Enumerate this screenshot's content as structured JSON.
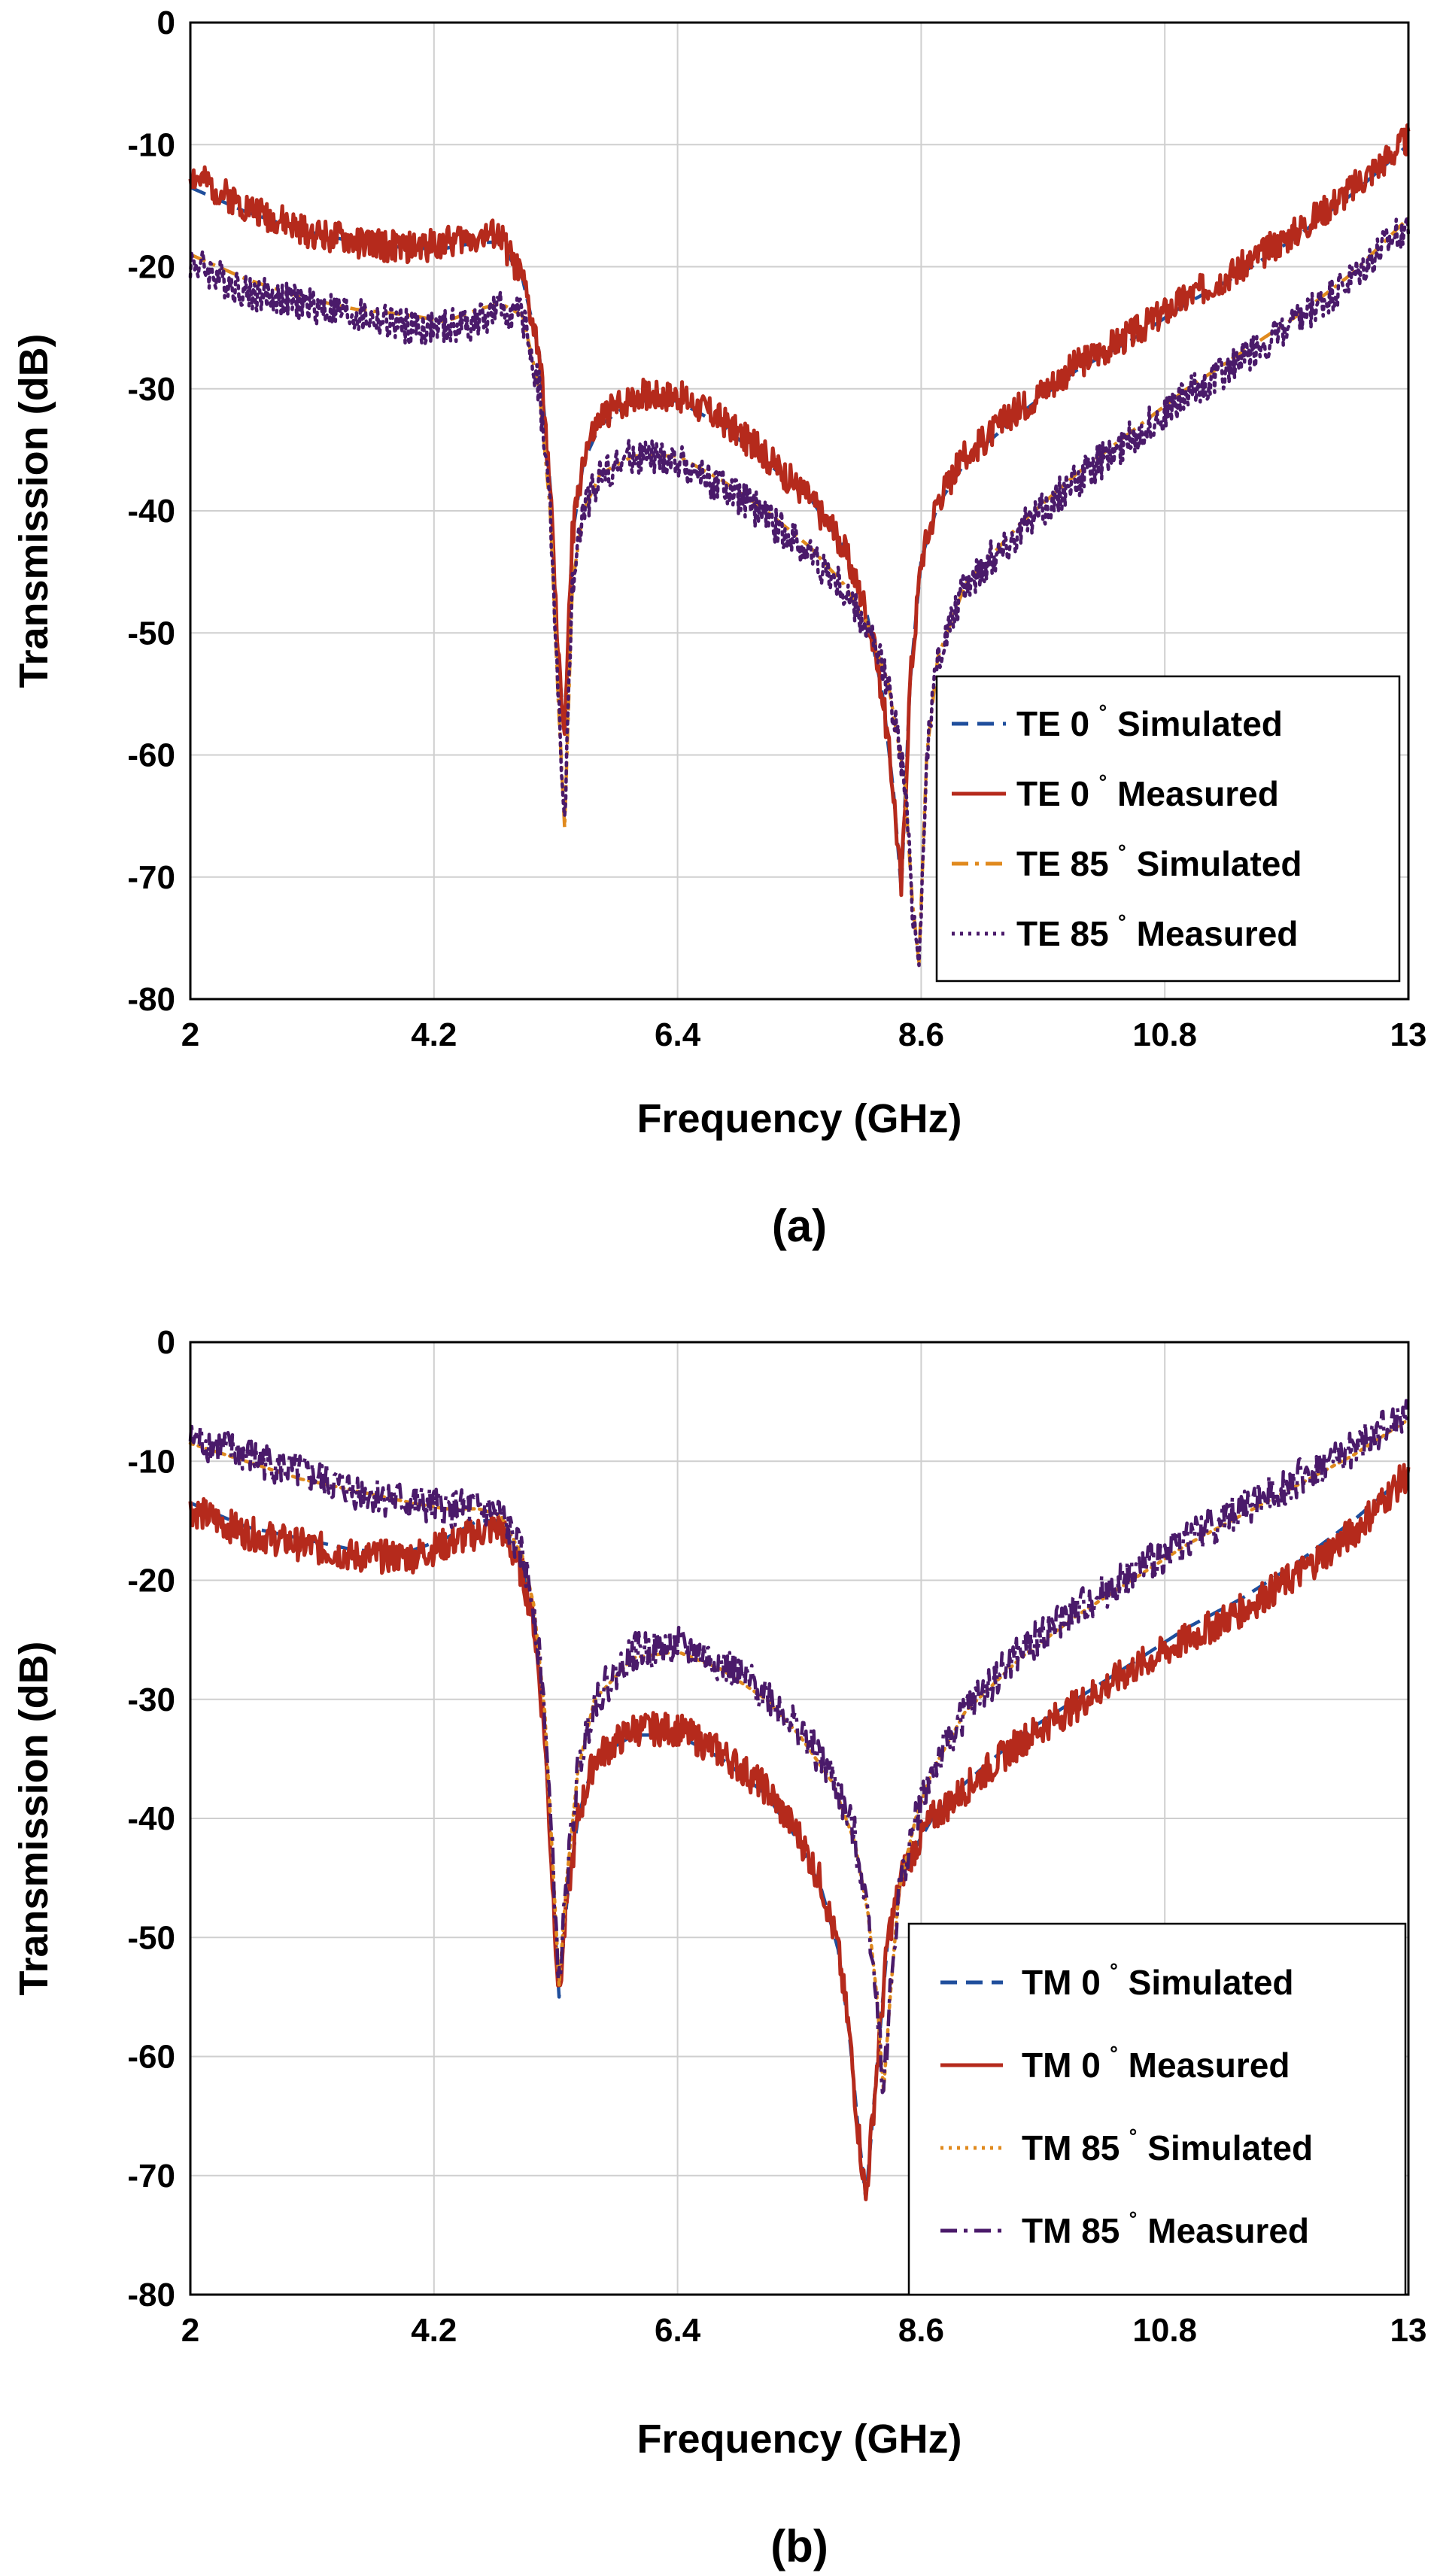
{
  "chart_data": [
    {
      "type": "line",
      "panel_label": "(a)",
      "xlabel": "Frequency (GHz)",
      "ylabel": "Transmission (dB)",
      "xlim": [
        2,
        13
      ],
      "ylim": [
        -80,
        0
      ],
      "xticks": [
        2,
        4.2,
        6.4,
        8.6,
        10.8,
        13
      ],
      "xtick_labels": [
        "2",
        "4.2",
        "6.4",
        "8.6",
        "10.8",
        "13"
      ],
      "yticks": [
        0,
        -10,
        -20,
        -30,
        -40,
        -50,
        -60,
        -70,
        -80
      ],
      "ytick_labels": [
        "0",
        "-10",
        "-20",
        "-30",
        "-40",
        "-50",
        "-60",
        "-70",
        "-80"
      ],
      "grid": true,
      "legend_position": "bottom-right",
      "series": [
        {
          "name": "TE 0˚ Simulated",
          "label_main": "TE 0",
          "label_tail": "Simulated",
          "color": "#1f4e9c",
          "style": "dashed",
          "noise": 0,
          "seed": 1,
          "x": [
            2,
            2.5,
            3,
            3.5,
            4,
            4.3,
            4.6,
            4.8,
            5.0,
            5.15,
            5.25,
            5.32,
            5.38,
            5.45,
            5.55,
            5.7,
            6.0,
            6.4,
            6.8,
            7.2,
            7.6,
            7.9,
            8.1,
            8.25,
            8.35,
            8.42,
            8.5,
            8.6,
            8.75,
            9.0,
            9.5,
            10.0,
            10.5,
            11.0,
            11.5,
            12.0,
            12.5,
            13.0
          ],
          "values": [
            -13.5,
            -15.5,
            -17,
            -18,
            -18.5,
            -18.5,
            -18,
            -18,
            -21,
            -27,
            -38,
            -52,
            -58,
            -42,
            -36,
            -33,
            -31,
            -31,
            -33,
            -36,
            -39,
            -43,
            -48,
            -55,
            -63,
            -71,
            -54,
            -44,
            -39.5,
            -36,
            -32,
            -28.5,
            -26,
            -23,
            -20.5,
            -17.5,
            -14,
            -10
          ]
        },
        {
          "name": "TE 0˚ Measured",
          "label_main": "TE 0",
          "label_tail": "Measured",
          "color": "#b52a1c",
          "style": "solid",
          "noise": 1.3,
          "seed": 2,
          "x": [
            2,
            2.5,
            3,
            3.5,
            4,
            4.3,
            4.6,
            4.8,
            5.0,
            5.15,
            5.25,
            5.32,
            5.38,
            5.45,
            5.55,
            5.7,
            6.0,
            6.4,
            6.8,
            7.2,
            7.6,
            7.9,
            8.1,
            8.25,
            8.35,
            8.42,
            8.5,
            8.6,
            8.75,
            9.0,
            9.5,
            10.0,
            10.5,
            11.0,
            11.5,
            12.0,
            12.5,
            13.0
          ],
          "values": [
            -12.5,
            -15,
            -17,
            -18,
            -18.5,
            -18,
            -17.5,
            -17.5,
            -21,
            -27,
            -38,
            -52,
            -58,
            -42,
            -35.5,
            -32.5,
            -30.5,
            -30.5,
            -32.5,
            -35.5,
            -39,
            -43,
            -48,
            -55,
            -63,
            -71,
            -54,
            -44,
            -39,
            -35.5,
            -31.5,
            -28,
            -25.5,
            -22.5,
            -20,
            -17,
            -13.5,
            -9.5
          ]
        },
        {
          "name": "TE 85˚ Simulated",
          "label_main": "TE 85",
          "label_tail": "Simulated",
          "color": "#e08a1e",
          "style": "dashdot",
          "noise": 0,
          "seed": 3,
          "x": [
            2,
            2.5,
            3,
            3.5,
            4,
            4.3,
            4.6,
            4.8,
            5.0,
            5.15,
            5.25,
            5.32,
            5.38,
            5.45,
            5.55,
            5.7,
            6.0,
            6.4,
            6.8,
            7.2,
            7.6,
            7.9,
            8.1,
            8.3,
            8.45,
            8.52,
            8.58,
            8.65,
            8.75,
            9.0,
            9.5,
            10.0,
            10.5,
            11.0,
            11.5,
            12.0,
            12.5,
            13.0
          ],
          "values": [
            -19,
            -21,
            -22.5,
            -23.5,
            -24,
            -24.5,
            -23.5,
            -23,
            -24,
            -30,
            -40,
            -55,
            -66,
            -46,
            -40,
            -37,
            -35.5,
            -35.5,
            -37.5,
            -40,
            -43,
            -46,
            -49,
            -54,
            -62,
            -72,
            -77,
            -60,
            -52,
            -46,
            -41,
            -37,
            -33.5,
            -30,
            -27,
            -24,
            -20.5,
            -16
          ]
        },
        {
          "name": "TE 85˚ Measured",
          "label_main": "TE 85",
          "label_tail": "Measured",
          "color": "#4a1a6a",
          "style": "dotted",
          "noise": 1.5,
          "seed": 4,
          "x": [
            2,
            2.5,
            3,
            3.5,
            4,
            4.3,
            4.6,
            4.8,
            5.0,
            5.15,
            5.25,
            5.32,
            5.38,
            5.45,
            5.55,
            5.7,
            6.0,
            6.4,
            6.8,
            7.2,
            7.6,
            7.9,
            8.1,
            8.3,
            8.45,
            8.52,
            8.58,
            8.65,
            8.75,
            9.0,
            9.5,
            10.0,
            10.5,
            11.0,
            11.5,
            12.0,
            12.5,
            13.0
          ],
          "values": [
            -19.5,
            -22,
            -23,
            -24,
            -25,
            -25,
            -24.5,
            -23.5,
            -24,
            -30,
            -40,
            -55,
            -66,
            -46,
            -40,
            -37,
            -35.5,
            -36,
            -38,
            -40.5,
            -43.5,
            -46.5,
            -49.5,
            -54,
            -62,
            -72,
            -77,
            -60,
            -52,
            -46,
            -41.5,
            -37.5,
            -34,
            -30.5,
            -27.5,
            -24.5,
            -21,
            -16.5
          ]
        }
      ]
    },
    {
      "type": "line",
      "panel_label": "(b)",
      "xlabel": "Frequency (GHz)",
      "ylabel": "Transmission (dB)",
      "xlim": [
        2,
        13
      ],
      "ylim": [
        -80,
        0
      ],
      "xticks": [
        2,
        4.2,
        6.4,
        8.6,
        10.8,
        13
      ],
      "xtick_labels": [
        "2",
        "4.2",
        "6.4",
        "8.6",
        "10.8",
        "13"
      ],
      "yticks": [
        0,
        -10,
        -20,
        -30,
        -40,
        -50,
        -60,
        -70,
        -80
      ],
      "ytick_labels": [
        "0",
        "-10",
        "-20",
        "-30",
        "-40",
        "-50",
        "-60",
        "-70",
        "-80"
      ],
      "grid": true,
      "legend_position": "bottom-right",
      "series": [
        {
          "name": "TM 0˚ Simulated",
          "label_main": "TM 0",
          "label_tail": "Simulated",
          "color": "#1f4e9c",
          "style": "dashed",
          "noise": 0,
          "seed": 5,
          "x": [
            2,
            2.5,
            3,
            3.5,
            4,
            4.3,
            4.6,
            4.8,
            5.0,
            5.1,
            5.2,
            5.28,
            5.33,
            5.4,
            5.5,
            5.65,
            6.0,
            6.4,
            6.8,
            7.2,
            7.5,
            7.7,
            7.85,
            7.95,
            8.03,
            8.1,
            8.2,
            8.3,
            8.45,
            8.7,
            9.0,
            9.5,
            10.0,
            10.5,
            11.0,
            11.5,
            12.0,
            12.5,
            13.0
          ],
          "values": [
            -13.5,
            -15.5,
            -16.5,
            -17.5,
            -17.5,
            -16.5,
            -15,
            -15,
            -19,
            -23,
            -33,
            -47,
            -55,
            -47,
            -40,
            -35,
            -33,
            -33,
            -35,
            -38,
            -42,
            -46,
            -51,
            -58,
            -66,
            -72,
            -61,
            -50,
            -44,
            -40,
            -37,
            -33,
            -30,
            -27,
            -24,
            -21.5,
            -18.5,
            -15,
            -11
          ]
        },
        {
          "name": "TM 0˚ Measured",
          "label_main": "TM 0",
          "label_tail": "Measured",
          "color": "#b52a1c",
          "style": "solid",
          "noise": 1.4,
          "seed": 6,
          "x": [
            2,
            2.5,
            3,
            3.5,
            4,
            4.3,
            4.6,
            4.8,
            5.0,
            5.1,
            5.2,
            5.28,
            5.33,
            5.4,
            5.5,
            5.65,
            6.0,
            6.4,
            6.8,
            7.2,
            7.5,
            7.7,
            7.85,
            7.95,
            8.03,
            8.1,
            8.2,
            8.3,
            8.45,
            8.7,
            9.0,
            9.5,
            10.0,
            10.5,
            11.0,
            11.5,
            12.0,
            12.5,
            13.0
          ],
          "values": [
            -14,
            -16,
            -17,
            -18,
            -18,
            -17,
            -16,
            -15.5,
            -19.5,
            -23.5,
            -33,
            -47,
            -55,
            -47,
            -40,
            -35,
            -32.5,
            -32.5,
            -34.5,
            -37.5,
            -41.5,
            -45.5,
            -51,
            -58,
            -66,
            -72,
            -61,
            -50,
            -44,
            -40,
            -37.5,
            -33.5,
            -30.5,
            -27.5,
            -25,
            -22.5,
            -19.5,
            -16,
            -11
          ]
        },
        {
          "name": "TM 85˚ Simulated",
          "label_main": "TM 85",
          "label_tail": "Simulated",
          "color": "#e08a1e",
          "style": "dotted",
          "noise": 0,
          "seed": 7,
          "x": [
            2,
            2.5,
            3,
            3.5,
            4,
            4.3,
            4.6,
            4.8,
            5.0,
            5.1,
            5.2,
            5.28,
            5.33,
            5.4,
            5.5,
            5.65,
            6.0,
            6.4,
            6.8,
            7.2,
            7.5,
            7.8,
            8.0,
            8.12,
            8.2,
            8.26,
            8.32,
            8.4,
            8.55,
            8.7,
            9.0,
            9.5,
            10.0,
            10.5,
            11.0,
            11.5,
            12.0,
            12.5,
            13.0
          ],
          "values": [
            -8.5,
            -10,
            -11.5,
            -12.5,
            -13.5,
            -14,
            -14,
            -14.5,
            -18,
            -22,
            -31,
            -45,
            -54,
            -45,
            -36,
            -30,
            -26.5,
            -26,
            -27.5,
            -30,
            -33,
            -37,
            -42,
            -48,
            -55,
            -63,
            -55,
            -46,
            -40,
            -36,
            -31,
            -26.5,
            -23,
            -20,
            -17,
            -14.5,
            -12,
            -9.5,
            -6.5
          ]
        },
        {
          "name": "TM 85˚ Measured",
          "label_main": "TM 85",
          "label_tail": "Measured",
          "color": "#4a1a6a",
          "style": "dashdot",
          "noise": 1.6,
          "seed": 8,
          "x": [
            2,
            2.5,
            3,
            3.5,
            4,
            4.3,
            4.6,
            4.8,
            5.0,
            5.1,
            5.2,
            5.28,
            5.33,
            5.4,
            5.5,
            5.65,
            6.0,
            6.4,
            6.8,
            7.2,
            7.5,
            7.8,
            8.0,
            8.12,
            8.2,
            8.26,
            8.32,
            8.4,
            8.55,
            8.7,
            9.0,
            9.5,
            10.0,
            10.5,
            11.0,
            11.5,
            12.0,
            12.5,
            13.0
          ],
          "values": [
            -8,
            -9.5,
            -11,
            -12.5,
            -13.5,
            -14,
            -14,
            -14.5,
            -18,
            -22,
            -31,
            -45,
            -54,
            -45,
            -36,
            -30,
            -26,
            -25.5,
            -27,
            -29.5,
            -32.5,
            -36.5,
            -41.5,
            -48,
            -55,
            -63,
            -55,
            -46,
            -40,
            -36,
            -31,
            -26,
            -22.5,
            -19.5,
            -16.5,
            -14,
            -11.5,
            -9,
            -6
          ]
        }
      ]
    }
  ]
}
